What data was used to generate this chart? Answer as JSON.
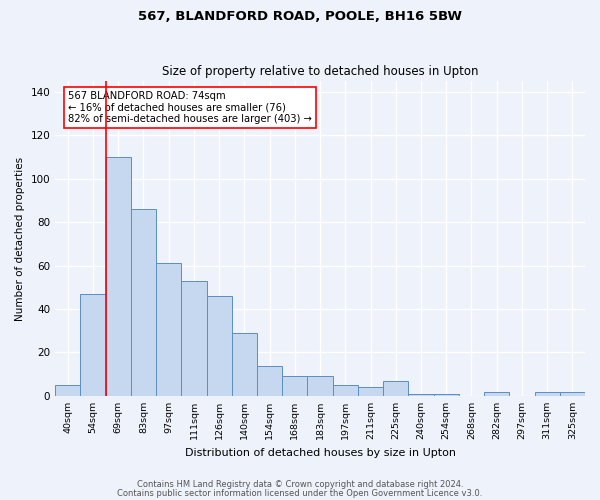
{
  "title1": "567, BLANDFORD ROAD, POOLE, BH16 5BW",
  "title2": "Size of property relative to detached houses in Upton",
  "xlabel": "Distribution of detached houses by size in Upton",
  "ylabel": "Number of detached properties",
  "bins": [
    "40sqm",
    "54sqm",
    "69sqm",
    "83sqm",
    "97sqm",
    "111sqm",
    "126sqm",
    "140sqm",
    "154sqm",
    "168sqm",
    "183sqm",
    "197sqm",
    "211sqm",
    "225sqm",
    "240sqm",
    "254sqm",
    "268sqm",
    "282sqm",
    "297sqm",
    "311sqm",
    "325sqm"
  ],
  "values": [
    5,
    47,
    110,
    86,
    61,
    53,
    46,
    29,
    14,
    9,
    9,
    5,
    4,
    7,
    1,
    1,
    0,
    2,
    0,
    2,
    2
  ],
  "bar_color": "#c5d8f0",
  "bar_edge_color": "#5b8ec4",
  "red_line_x": 1.5,
  "annotation_lines": [
    "567 BLANDFORD ROAD: 74sqm",
    "← 16% of detached houses are smaller (76)",
    "82% of semi-detached houses are larger (403) →"
  ],
  "ylim": [
    0,
    145
  ],
  "yticks": [
    0,
    20,
    40,
    60,
    80,
    100,
    120,
    140
  ],
  "footer1": "Contains HM Land Registry data © Crown copyright and database right 2024.",
  "footer2": "Contains public sector information licensed under the Open Government Licence v3.0.",
  "bg_color": "#eef2fb",
  "grid_color": "#ffffff"
}
